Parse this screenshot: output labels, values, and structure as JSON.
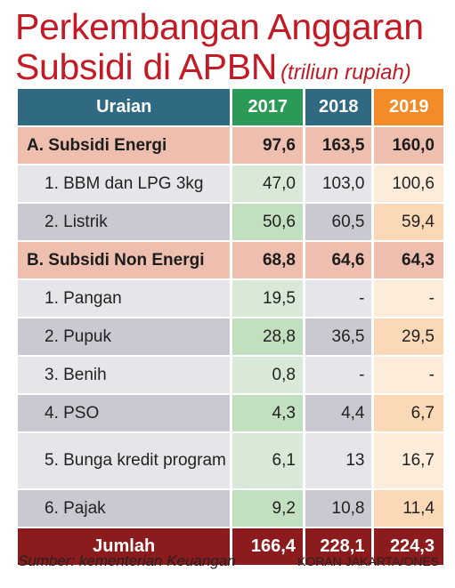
{
  "title": {
    "line1": "Perkembangan Anggaran",
    "line2": "Subsidi di APBN",
    "unit": "(triliun rupiah)"
  },
  "chart_data": {
    "type": "table",
    "columns": [
      "Uraian",
      "2017",
      "2018",
      "2019"
    ],
    "rows": [
      {
        "label": "A. Subsidi Energi",
        "values": [
          "97,6",
          "163,5",
          "160,0"
        ]
      },
      {
        "label": "1. BBM dan LPG 3kg",
        "values": [
          "47,0",
          "103,0",
          "100,6"
        ]
      },
      {
        "label": "2. Listrik",
        "values": [
          "50,6",
          "60,5",
          "59,4"
        ]
      },
      {
        "label": "B. Subsidi Non Energi",
        "values": [
          "68,8",
          "64,6",
          "64,3"
        ]
      },
      {
        "label": "1. Pangan",
        "values": [
          "19,5",
          "-",
          "-"
        ]
      },
      {
        "label": "2. Pupuk",
        "values": [
          "28,8",
          "36,5",
          "29,5"
        ]
      },
      {
        "label": "3. Benih",
        "values": [
          "0,8",
          "-",
          "-"
        ]
      },
      {
        "label": "4. PSO",
        "values": [
          "4,3",
          "4,4",
          "6,7"
        ]
      },
      {
        "label": "5. Bunga kredit program",
        "values": [
          "6,1",
          "13",
          "16,7"
        ]
      },
      {
        "label": "6. Pajak",
        "values": [
          "9,2",
          "10,8",
          "11,4"
        ]
      }
    ],
    "total": {
      "label": "Jumlah",
      "values": [
        "166,4",
        "228,1",
        "224,3"
      ]
    }
  },
  "footer": {
    "source": "Sumber: kementerian Keuangan",
    "credit": "KORAN JAKARTA/ONES"
  },
  "colors": {
    "title": "#c21b26",
    "header_label": "#2f6a82",
    "header_2017": "#2b9a57",
    "header_2019": "#f28c28",
    "category_row": "#eebfaf",
    "total_row": "#8c1b1d"
  }
}
